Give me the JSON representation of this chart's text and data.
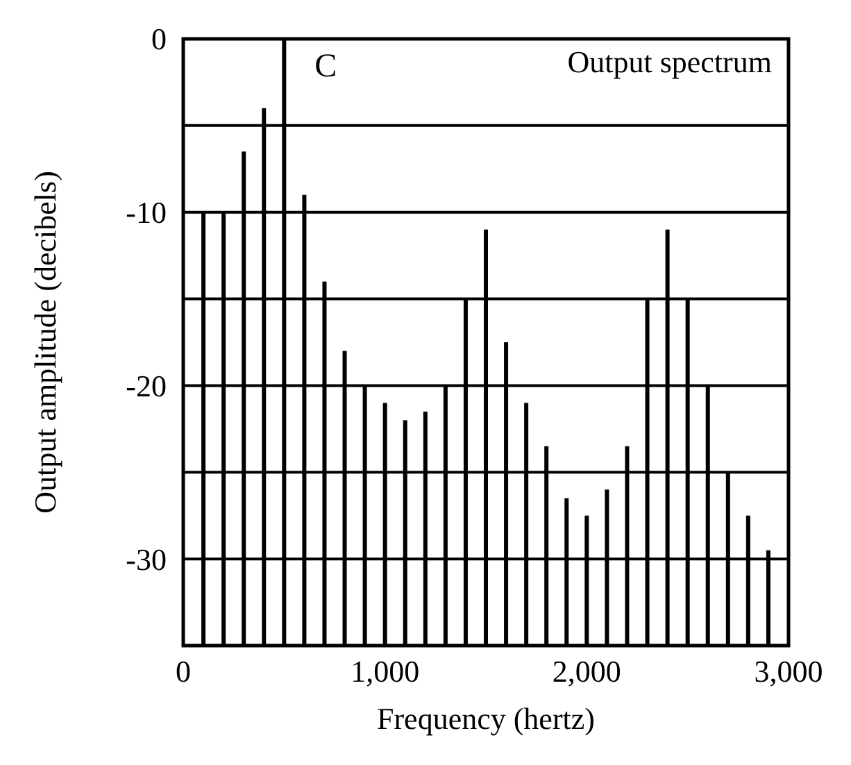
{
  "chart_data": {
    "type": "bar",
    "title": "Output spectrum",
    "annotations": [
      "C"
    ],
    "xlabel": "Frequency (hertz)",
    "ylabel": "Output amplitude (decibels)",
    "x": [
      100,
      200,
      300,
      400,
      500,
      600,
      700,
      800,
      900,
      1000,
      1100,
      1200,
      1300,
      1400,
      1500,
      1600,
      1700,
      1800,
      1900,
      2000,
      2100,
      2200,
      2300,
      2400,
      2500,
      2600,
      2700,
      2800,
      2900
    ],
    "values": [
      25,
      25,
      28.5,
      31,
      35,
      26,
      21,
      17,
      15,
      14,
      13,
      13.5,
      15,
      20,
      24,
      17.5,
      14,
      11.5,
      8.5,
      7.5,
      9,
      11.5,
      20,
      24,
      20,
      15,
      10,
      7.5,
      5.5
    ],
    "base": [
      -35,
      -35,
      -35,
      -35,
      -35,
      -35,
      -35,
      -35,
      -35,
      -35,
      -35,
      -35,
      -35,
      -35,
      -35,
      -35,
      -35,
      -35,
      -35,
      -35,
      -35,
      -35,
      -35,
      -35,
      -35,
      -35,
      -35,
      -35,
      -35
    ],
    "color": "#000000",
    "xlim": [
      0,
      3000
    ],
    "xticks": [
      0,
      {
        "value": 1000,
        "label": "1,000"
      },
      {
        "value": 2000,
        "label": "2,000"
      },
      {
        "value": 3000,
        "label": "3,000"
      }
    ],
    "ylim": [
      -35,
      0
    ],
    "yticks": [
      0,
      {
        "value": -5,
        "label": null
      },
      -10,
      {
        "value": -15,
        "label": null
      },
      -20,
      {
        "value": -25,
        "label": null
      },
      -30
    ],
    "grid": "y"
  }
}
